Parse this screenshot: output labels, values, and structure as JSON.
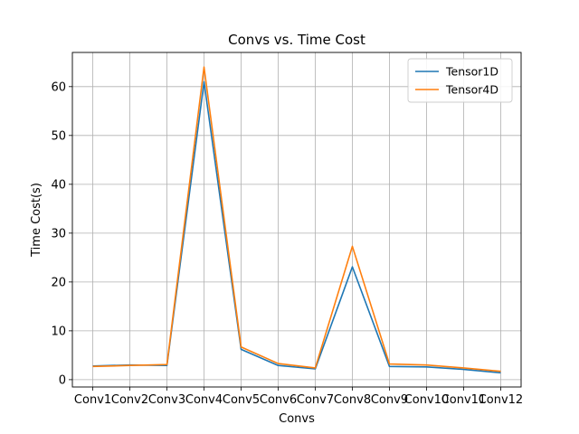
{
  "chart_data": {
    "type": "line",
    "title": "Convs vs. Time Cost",
    "xlabel": "Convs",
    "ylabel": "Time Cost(s)",
    "categories": [
      "Conv1",
      "Conv2",
      "Conv3",
      "Conv4",
      "Conv5",
      "Conv6",
      "Conv7",
      "Conv8",
      "Conv9",
      "Conv10",
      "Conv11",
      "Conv12"
    ],
    "ylim": [
      -1.5,
      67
    ],
    "yticks": [
      0,
      10,
      20,
      30,
      40,
      50,
      60
    ],
    "grid": true,
    "legend_position": "top-right",
    "series": [
      {
        "name": "Tensor1D",
        "color": "#1f77b4",
        "values": [
          2.8,
          3.0,
          2.9,
          61.0,
          6.2,
          2.9,
          2.2,
          23.1,
          2.7,
          2.6,
          2.1,
          1.4
        ]
      },
      {
        "name": "Tensor4D",
        "color": "#ff7f0e",
        "values": [
          2.7,
          2.9,
          3.1,
          64.0,
          6.7,
          3.3,
          2.4,
          27.3,
          3.2,
          3.0,
          2.4,
          1.7
        ]
      }
    ]
  }
}
